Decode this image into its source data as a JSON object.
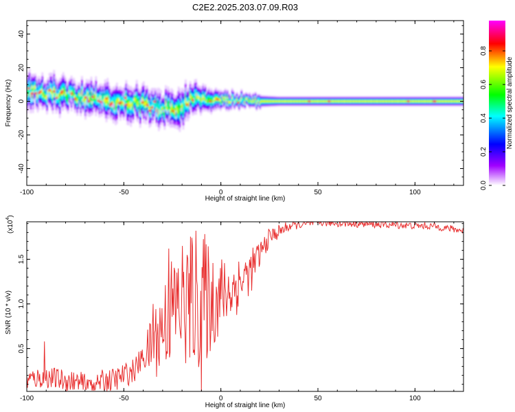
{
  "title": "C2E2.2025.203.07.09.R03",
  "colors": {
    "line": "#e83030",
    "frame": "#000000",
    "background": "#ffffff"
  },
  "chart_data": [
    {
      "type": "heatmap",
      "title": "C2E2.2025.203.07.09.R03",
      "xlabel": "Height of straight line (km)",
      "ylabel": "Frequency (Hz)",
      "xlim": [
        -100,
        125
      ],
      "ylim": [
        -50,
        48
      ],
      "x_ticks": [
        "-100",
        "-50",
        "0",
        "50",
        "100"
      ],
      "y_ticks": [
        "-40",
        "-20",
        "0",
        "20",
        "40"
      ],
      "colorbar": {
        "label": "Normalized spectral amplitude",
        "range": [
          0,
          0.98
        ],
        "ticks": [
          "0.0",
          "0.2",
          "0.4",
          "0.6",
          "0.8"
        ],
        "colormap": [
          "#ffffff",
          "#a000ff",
          "#0000ff",
          "#00ffff",
          "#00ff00",
          "#ffff00",
          "#ff0000",
          "#ff00ff"
        ]
      },
      "ridge": {
        "description_points": [
          [
            -100,
            6
          ],
          [
            -80,
            4
          ],
          [
            -60,
            1
          ],
          [
            -40,
            -2
          ],
          [
            -22,
            -5
          ],
          [
            -15,
            2
          ],
          [
            0,
            1
          ],
          [
            20,
            0
          ],
          [
            125,
            0
          ]
        ],
        "width_hz": [
          [
            -100,
            9
          ],
          [
            -20,
            10
          ],
          [
            0,
            5
          ],
          [
            30,
            3
          ],
          [
            125,
            3
          ]
        ]
      }
    },
    {
      "type": "line",
      "xlabel": "Height of straight line (km)",
      "ylabel": "SNR (10 * v/v)",
      "y_multiplier": "(x10^4)",
      "y_multiplier_base": "(x10",
      "y_multiplier_exp": "4",
      "y_multiplier_tail": ")",
      "xlim": [
        -100,
        125
      ],
      "ylim": [
        0.02,
        1.92
      ],
      "x_ticks": [
        "-100",
        "-50",
        "0",
        "50",
        "100"
      ],
      "y_ticks": [
        "0.5",
        "1.0",
        "1.5"
      ],
      "series": [
        {
          "color": "#e83030",
          "envelope_points": [
            [
              -100,
              0.15
            ],
            [
              -90,
              0.18
            ],
            [
              -70,
              0.1
            ],
            [
              -55,
              0.15
            ],
            [
              -45,
              0.25
            ],
            [
              -35,
              0.55
            ],
            [
              -25,
              0.95
            ],
            [
              -15,
              1.05
            ],
            [
              -5,
              1.05
            ],
            [
              5,
              1.15
            ],
            [
              15,
              1.35
            ],
            [
              20,
              1.55
            ],
            [
              25,
              1.75
            ],
            [
              35,
              1.87
            ],
            [
              50,
              1.91
            ],
            [
              80,
              1.89
            ],
            [
              110,
              1.87
            ],
            [
              125,
              1.82
            ]
          ],
          "noise_amplitude_points": [
            [
              -100,
              0.12
            ],
            [
              -40,
              0.14
            ],
            [
              -35,
              0.4
            ],
            [
              -20,
              0.75
            ],
            [
              -10,
              0.8
            ],
            [
              0,
              0.45
            ],
            [
              15,
              0.25
            ],
            [
              25,
              0.1
            ],
            [
              40,
              0.04
            ],
            [
              125,
              0.04
            ]
          ],
          "spikes": [
            [
              -91,
              0.58
            ],
            [
              -35,
              1.0
            ],
            [
              -27,
              1.62
            ],
            [
              -13,
              1.82
            ],
            [
              -10,
              0.0
            ]
          ]
        }
      ]
    }
  ]
}
